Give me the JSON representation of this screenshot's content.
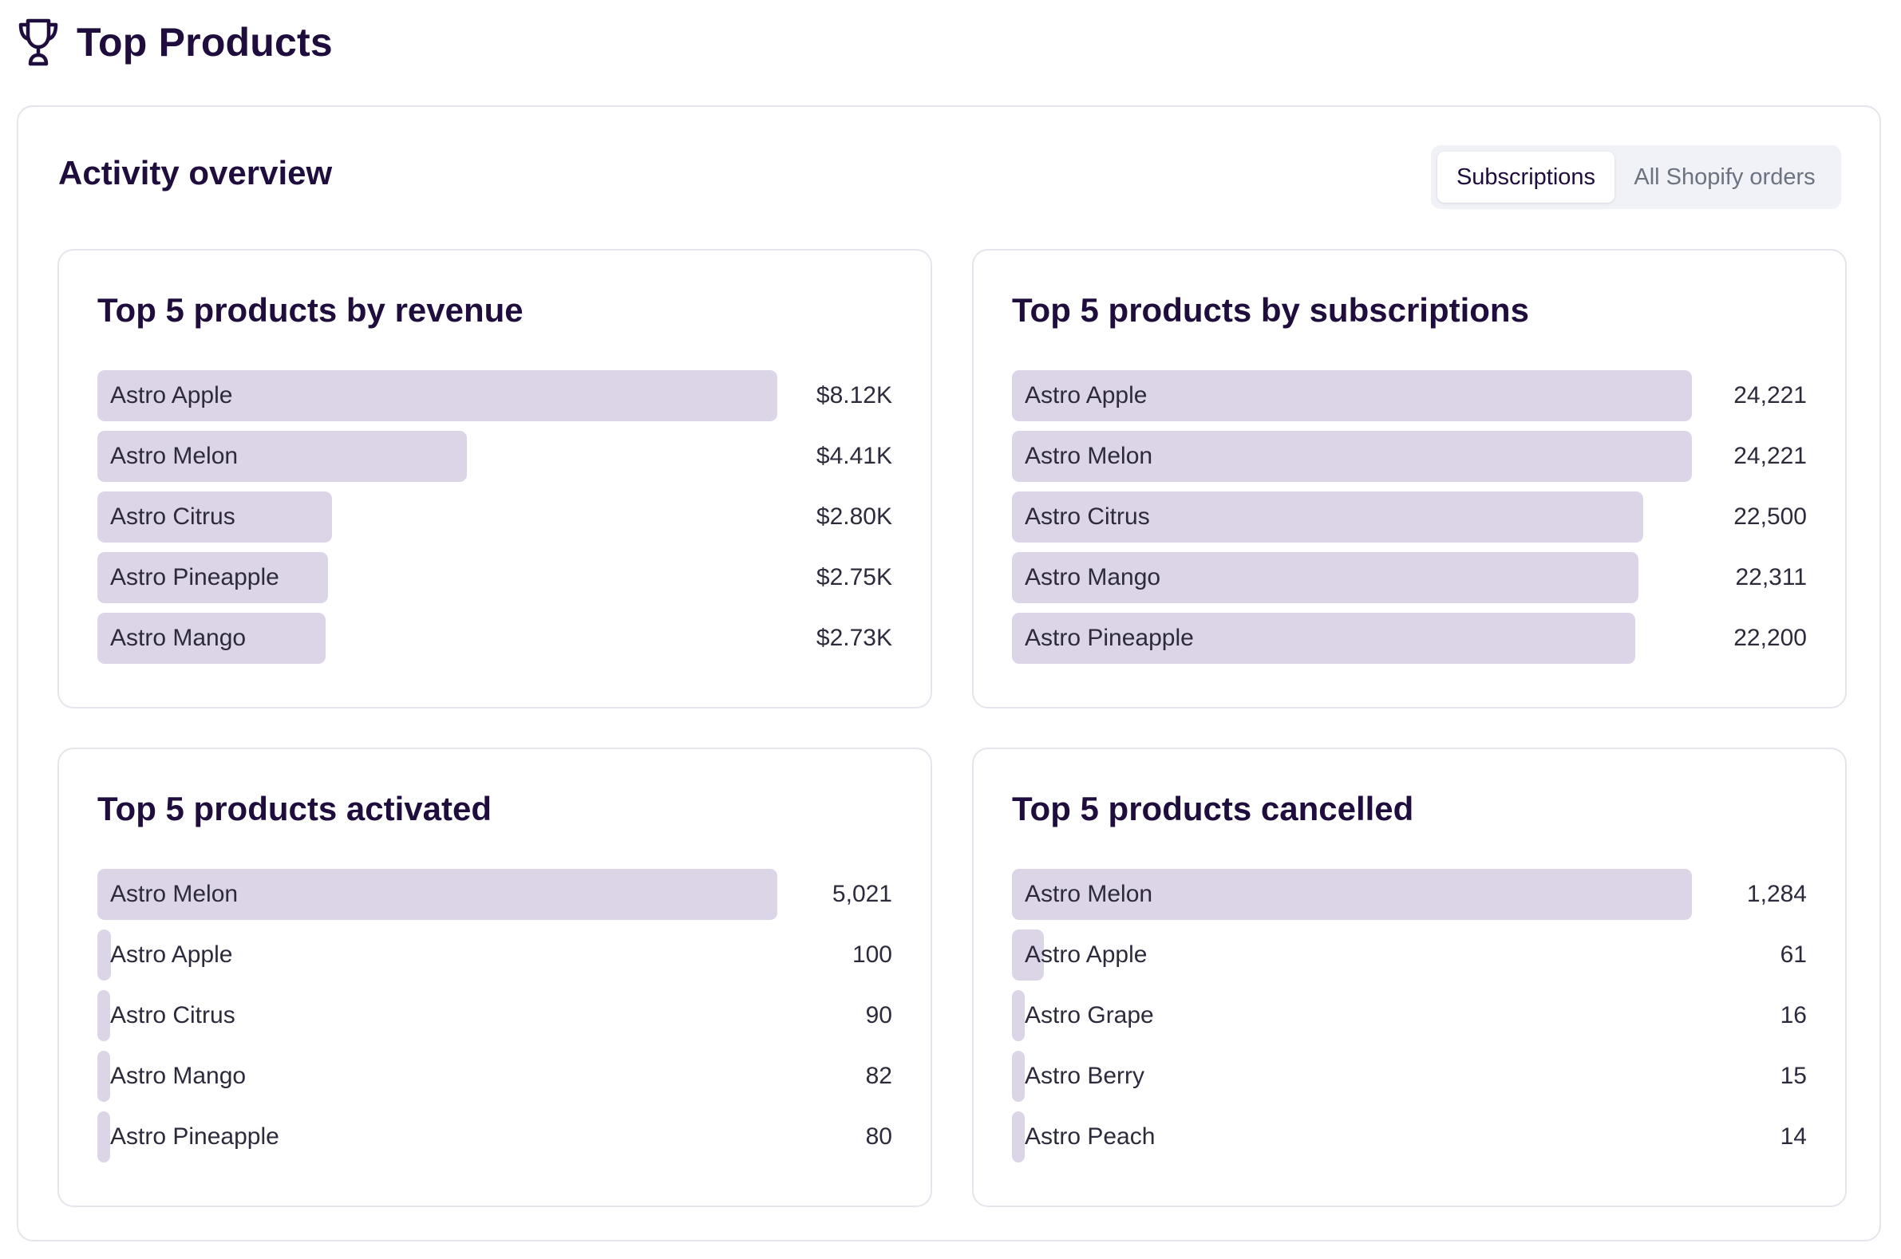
{
  "page": {
    "title": "Top Products",
    "icon": "trophy-icon"
  },
  "overview": {
    "title": "Activity overview",
    "toggle": {
      "options": [
        "Subscriptions",
        "All Shopify orders"
      ],
      "selected": "Subscriptions"
    }
  },
  "colors": {
    "bar": "#dcd5e8",
    "title_text": "#1f0d3d",
    "body_text": "#2e2a3b",
    "toggle_background": "#f0f2f7"
  },
  "panels": [
    {
      "title": "Top 5 products by revenue",
      "rows": [
        {
          "label": "Astro Apple",
          "value": "$8.12K",
          "amount": 8120
        },
        {
          "label": "Astro Melon",
          "value": "$4.41K",
          "amount": 4410
        },
        {
          "label": "Astro Citrus",
          "value": "$2.80K",
          "amount": 2800
        },
        {
          "label": "Astro Pineapple",
          "value": "$2.75K",
          "amount": 2750
        },
        {
          "label": "Astro Mango",
          "value": "$2.73K",
          "amount": 2730
        }
      ]
    },
    {
      "title": "Top 5 products by subscriptions",
      "rows": [
        {
          "label": "Astro Apple",
          "value": "24,221",
          "amount": 24221
        },
        {
          "label": "Astro Melon",
          "value": "24,221",
          "amount": 24221
        },
        {
          "label": "Astro Citrus",
          "value": "22,500",
          "amount": 22500
        },
        {
          "label": "Astro Mango",
          "value": "22,311",
          "amount": 22311
        },
        {
          "label": "Astro Pineapple",
          "value": "22,200",
          "amount": 22200
        }
      ]
    },
    {
      "title": "Top 5 products activated",
      "rows": [
        {
          "label": "Astro Melon",
          "value": "5,021",
          "amount": 5021
        },
        {
          "label": "Astro Apple",
          "value": "100",
          "amount": 100
        },
        {
          "label": "Astro Citrus",
          "value": "90",
          "amount": 90
        },
        {
          "label": "Astro Mango",
          "value": "82",
          "amount": 82
        },
        {
          "label": "Astro Pineapple",
          "value": "80",
          "amount": 80
        }
      ]
    },
    {
      "title": "Top 5 products cancelled",
      "rows": [
        {
          "label": "Astro Melon",
          "value": "1,284",
          "amount": 1284
        },
        {
          "label": "Astro Apple",
          "value": "61",
          "amount": 61
        },
        {
          "label": "Astro Grape",
          "value": "16",
          "amount": 16
        },
        {
          "label": "Astro Berry",
          "value": "15",
          "amount": 15
        },
        {
          "label": "Astro Peach",
          "value": "14",
          "amount": 14
        }
      ]
    }
  ]
}
